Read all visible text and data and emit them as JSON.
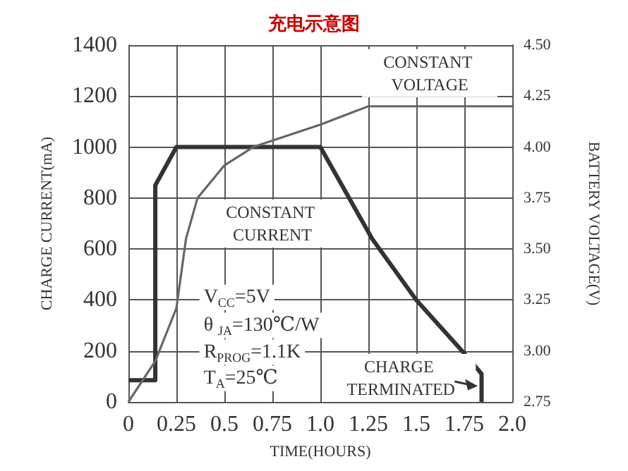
{
  "chart_data": {
    "type": "line",
    "title": "充电示意图",
    "xlabel": "TIME(HOURS)",
    "ylabel": "CHARGE CURRENT(mA)",
    "y2label": "BATTERY VOLTAGE(V)",
    "series": [
      {
        "color": "#333333",
        "x": [
          0,
          0.14,
          0.14,
          0.25,
          1.0,
          1.27,
          1.5,
          1.75,
          1.84,
          1.84
        ],
        "values": [
          85,
          85,
          850,
          1000,
          1000,
          640,
          400,
          190,
          110,
          0
        ]
      },
      {
        "color": "#666666",
        "axis": "y2",
        "x": [
          0,
          0.14,
          0.25,
          0.3,
          0.36,
          0.5,
          0.65,
          1.0,
          1.25,
          2.0
        ],
        "values": [
          2.75,
          2.95,
          3.21,
          3.55,
          3.75,
          3.91,
          4.0,
          4.11,
          4.2,
          4.2
        ]
      }
    ],
    "xlim": [
      0,
      2
    ],
    "xticks": [
      0,
      0.25,
      0.5,
      0.75,
      {
        "value": 1,
        "label": "1.0"
      },
      1.25,
      1.5,
      1.75,
      {
        "value": 2,
        "label": "2.0"
      }
    ],
    "ylim": [
      0,
      1400
    ],
    "yticks": [
      0,
      200,
      400,
      600,
      800,
      1000,
      1200,
      1400
    ],
    "y2lim": [
      2.75,
      4.5
    ],
    "y2ticks": [
      2.75,
      {
        "value": 3,
        "label": "3.00"
      },
      3.25,
      {
        "value": 3.5,
        "label": "3.50"
      },
      3.75,
      {
        "value": 4,
        "label": "4.00"
      },
      4.25,
      {
        "value": 4.5,
        "label": "4.50"
      }
    ],
    "annotations": [
      "CONSTANT VOLTAGE",
      "CONSTANT CURRENT",
      "V$_{CC}$=5V",
      "θ $_{JA}$=130℃/W",
      "R$_{PROG}$=1.1K",
      "T$_{A}$=25℃",
      "CHARGE TERMINATED"
    ],
    "grid": true,
    "marker": "none",
    "line_style": "solid"
  }
}
